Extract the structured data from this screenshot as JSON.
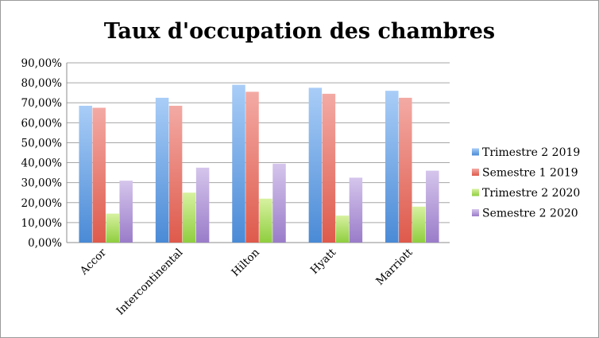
{
  "chart_data": {
    "type": "bar",
    "title": "Taux d'occupation des chambres",
    "xlabel": "",
    "ylabel": "",
    "categories": [
      "Accor",
      "Intercontinental",
      "Hilton",
      "Hyatt",
      "Marriott"
    ],
    "series": [
      {
        "name": "Trimestre 2 2019",
        "values": [
          0.685,
          0.725,
          0.79,
          0.775,
          0.76
        ]
      },
      {
        "name": "Semestre 1 2019",
        "values": [
          0.675,
          0.685,
          0.755,
          0.745,
          0.725
        ]
      },
      {
        "name": "Trimestre 2 2020",
        "values": [
          0.145,
          0.25,
          0.22,
          0.135,
          0.18
        ]
      },
      {
        "name": "Semestre 2 2020",
        "values": [
          0.31,
          0.375,
          0.395,
          0.325,
          0.36
        ]
      }
    ],
    "ylim": [
      0,
      0.9
    ],
    "yticks": [
      "0,00%",
      "10,00%",
      "20,00%",
      "30,00%",
      "40,00%",
      "50,00%",
      "60,00%",
      "70,00%",
      "80,00%",
      "90,00%"
    ],
    "grid": true,
    "legend_position": "right",
    "colors": [
      {
        "light": "#a9cdf7",
        "dark": "#4a8ad6"
      },
      {
        "light": "#f3aaa4",
        "dark": "#de5a4c"
      },
      {
        "light": "#d7f1a0",
        "dark": "#8fce3f"
      },
      {
        "light": "#d5c5ec",
        "dark": "#9a7cc9"
      }
    ]
  }
}
